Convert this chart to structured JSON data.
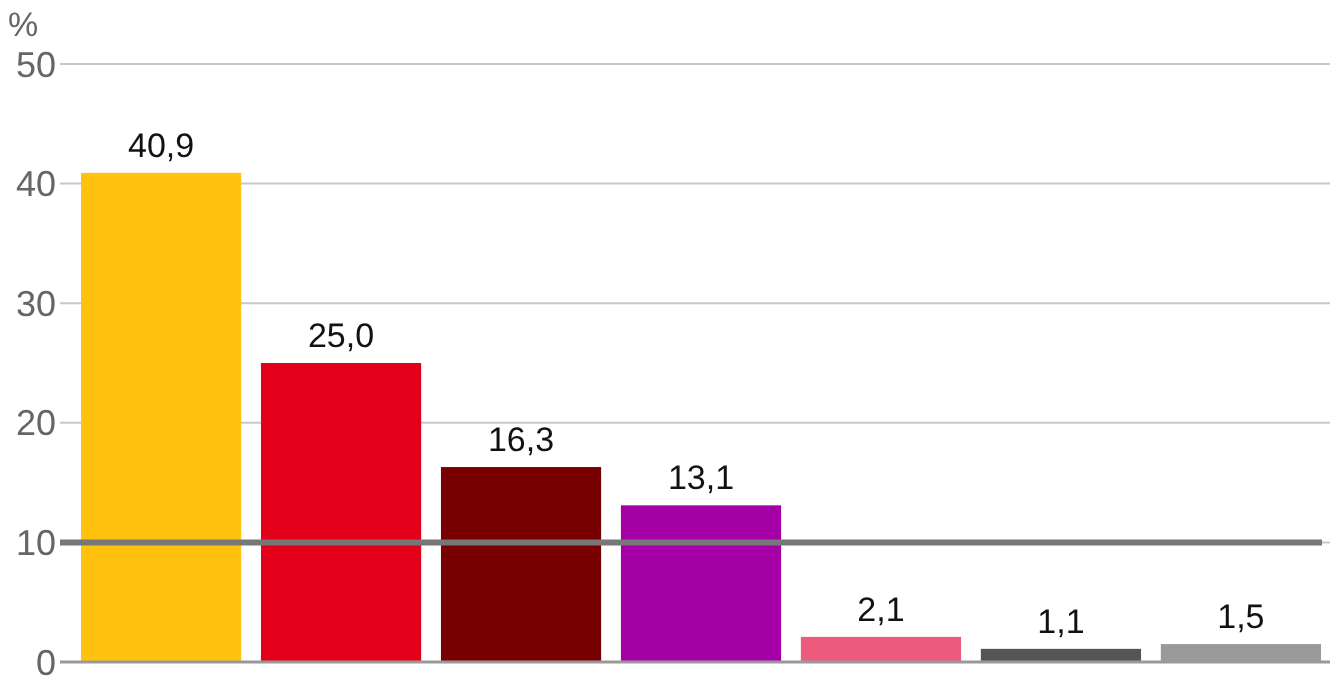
{
  "chart_data": {
    "type": "bar",
    "ylabel": "%",
    "categories": [
      null,
      null,
      null,
      null,
      null,
      null,
      null
    ],
    "values": [
      40.9,
      25.0,
      16.3,
      13.1,
      2.1,
      1.1,
      1.5
    ],
    "colors": [
      "#ffc20e",
      "#e2001a",
      "#780000",
      "#a400a6",
      "#ec5a7e",
      "#555555",
      "#9a9a9a"
    ],
    "value_labels": [
      "40,9",
      "25,0",
      "16,3",
      "13,1",
      "2,1",
      "1,1",
      "1,5"
    ],
    "ylim": [
      0,
      50
    ],
    "yticks": [
      0,
      10,
      20,
      30,
      40,
      50
    ],
    "grid": "y",
    "ref_lines": [
      {
        "axis": "y",
        "value": 10,
        "color": "#777777"
      }
    ]
  }
}
